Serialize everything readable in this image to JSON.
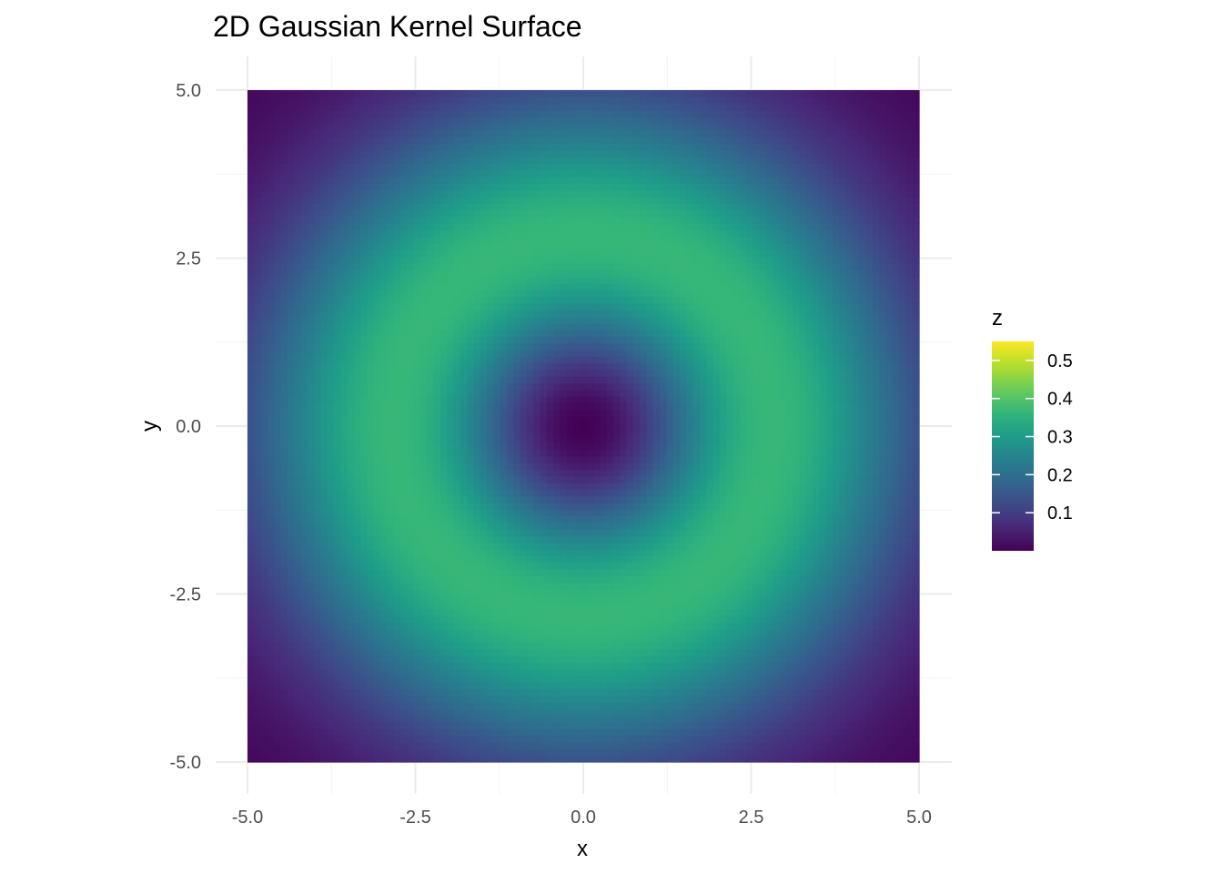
{
  "chart_data": {
    "type": "heatmap",
    "title": "2D Gaussian Kernel Surface",
    "xlabel": "x",
    "ylabel": "y",
    "xlim": [
      -5,
      5
    ],
    "ylim": [
      -5,
      5
    ],
    "x_ticks": [
      -5,
      -2.5,
      0,
      2.5,
      5
    ],
    "y_ticks": [
      -5,
      -2.5,
      0,
      2.5,
      5
    ],
    "x_tick_labels": [
      "-5.0",
      "-2.5",
      "0.0",
      "2.5",
      "5.0"
    ],
    "y_tick_labels": [
      "-5.0",
      "-2.5",
      "0.0",
      "2.5",
      "5.0"
    ],
    "grid_resolution": 101,
    "surface": "z = r^2 * exp(-r^2 / 8) / 8, r^2 = x^2 + y^2",
    "z_range": [
      0,
      0.55
    ],
    "grid": true,
    "legend": {
      "title": "z",
      "position": "right",
      "ticks": [
        0.1,
        0.2,
        0.3,
        0.4,
        0.5
      ],
      "tick_labels": [
        "0.1",
        "0.2",
        "0.3",
        "0.4",
        "0.5"
      ]
    },
    "colormap": "viridis",
    "colors": [
      "#440154",
      "#482878",
      "#3e4a89",
      "#31688e",
      "#26828e",
      "#1f9e89",
      "#35b779",
      "#6ece58",
      "#b5de2b",
      "#fde725"
    ]
  }
}
